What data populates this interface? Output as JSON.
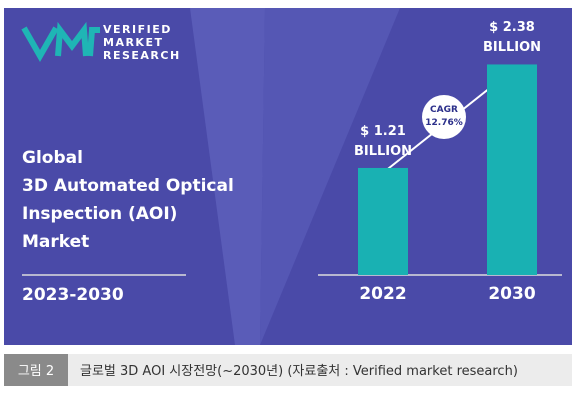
{
  "logo": {
    "lines": [
      "VERIFIED",
      "MARKET",
      "RESEARCH"
    ]
  },
  "headline": {
    "lines": [
      "Global",
      "3D Automated Optical",
      "Inspection (AOI)",
      "Market"
    ],
    "period": "2023-2030"
  },
  "chart_data": {
    "type": "bar",
    "categories": [
      "2022",
      "2030"
    ],
    "values": [
      1.21,
      2.38
    ],
    "value_labels": [
      "$ 1.21 BILLION",
      "$ 2.38 BILLION"
    ],
    "color": "#19b1b3",
    "ylim": [
      0,
      2.6
    ],
    "annotation": {
      "title": "CAGR",
      "value": "12.76%"
    }
  },
  "caption": {
    "label": "그림 2",
    "text": "글로벌 3D AOI 시장전망(~2030년) (자료출처 : Verified market research)"
  }
}
